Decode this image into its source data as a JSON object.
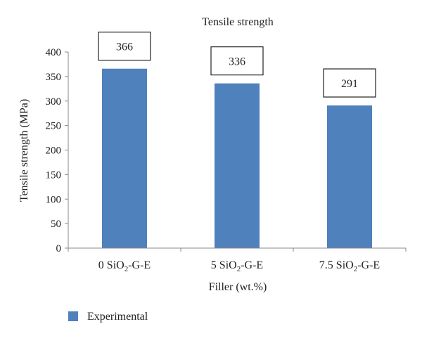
{
  "chart_data": {
    "type": "bar",
    "title": "Tensile strength",
    "xlabel": "Filler (wt.%)",
    "ylabel": "Tensile strength (MPa)",
    "ylim": [
      0,
      400
    ],
    "yticks": [
      0,
      50,
      100,
      150,
      200,
      250,
      300,
      350,
      400
    ],
    "categories": [
      {
        "prefix": "0 SiO",
        "sub": "2",
        "suffix": "-G-E"
      },
      {
        "prefix": "5 SiO",
        "sub": "2",
        "suffix": "-G-E"
      },
      {
        "prefix": "7.5 SiO",
        "sub": "2",
        "suffix": "-G-E"
      }
    ],
    "series": [
      {
        "name": "Experimental",
        "color": "#4f81bd",
        "values": [
          366,
          336,
          291
        ]
      }
    ],
    "data_labels": [
      "366",
      "336",
      "291"
    ],
    "legend": {
      "position": "bottom-left",
      "entries": [
        "Experimental"
      ]
    },
    "grid": false
  }
}
